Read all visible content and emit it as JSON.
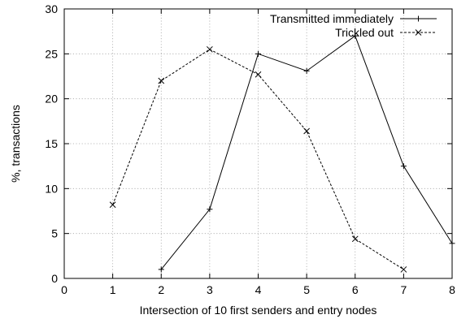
{
  "chart_data": {
    "type": "line",
    "xlabel": "Intersection of 10 first senders and entry nodes",
    "ylabel": "%, transactions",
    "xlim": [
      0,
      8
    ],
    "ylim": [
      0,
      30
    ],
    "xticks": [
      "0",
      "1",
      "2",
      "3",
      "4",
      "5",
      "6",
      "7",
      "8"
    ],
    "yticks": [
      "0",
      "5",
      "10",
      "15",
      "20",
      "25",
      "30"
    ],
    "grid": true,
    "legend_position": "top-right",
    "series": [
      {
        "name": "Transmitted immediately",
        "line_style": "solid",
        "marker": "plus",
        "color": "#000000",
        "points": [
          {
            "x": 2,
            "y": 1.0
          },
          {
            "x": 3,
            "y": 7.7
          },
          {
            "x": 4,
            "y": 25.0
          },
          {
            "x": 5,
            "y": 23.1
          },
          {
            "x": 6,
            "y": 27.0
          },
          {
            "x": 7,
            "y": 12.5
          },
          {
            "x": 8,
            "y": 3.9
          }
        ]
      },
      {
        "name": "Trickled out",
        "line_style": "dashed",
        "marker": "cross",
        "color": "#000000",
        "points": [
          {
            "x": 1,
            "y": 8.2
          },
          {
            "x": 2,
            "y": 22.0
          },
          {
            "x": 3,
            "y": 25.5
          },
          {
            "x": 4,
            "y": 22.7
          },
          {
            "x": 5,
            "y": 16.4
          },
          {
            "x": 6,
            "y": 4.4
          },
          {
            "x": 7,
            "y": 1.0
          }
        ]
      }
    ]
  }
}
